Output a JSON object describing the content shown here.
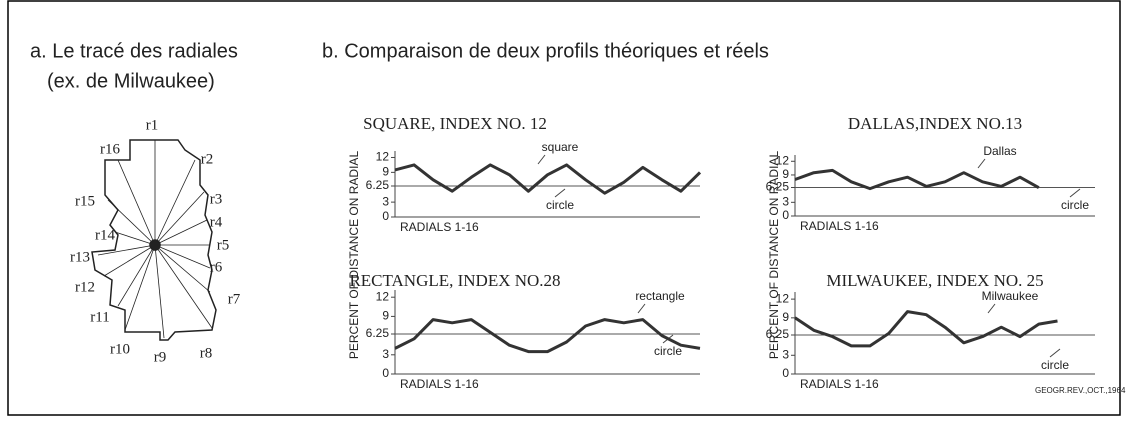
{
  "panel_a": {
    "title": [
      "a. Le tracé des radiales",
      "(ex. de Milwaukee)"
    ],
    "radial_labels": [
      "r1",
      "r2",
      "r3",
      "r4",
      "r5",
      "r6",
      "r7",
      "r8",
      "r9",
      "r10",
      "r11",
      "r12",
      "r13",
      "r14",
      "r15",
      "r16"
    ]
  },
  "panel_b": {
    "title": "b. Comparaison de deux profils théoriques et réels",
    "y_label": "PERCENT OF DISTANCE ON RADIAL",
    "source": "GEOGR.REV.,OCT.,1964"
  },
  "chart_data": [
    {
      "type": "line",
      "title": "SQUARE, INDEX NO. 12",
      "x_label": "RADIALS 1-16",
      "ylim": [
        0,
        12.5
      ],
      "yticks": [
        0,
        3,
        6.25,
        9,
        12
      ],
      "series": [
        {
          "name": "square",
          "color": "#333333",
          "values": [
            9.5,
            10.5,
            7.5,
            5.2,
            8,
            10.5,
            8.5,
            5.2,
            8.5,
            10.5,
            7.5,
            4.8,
            7,
            10,
            7.5,
            5.2,
            9
          ]
        }
      ],
      "reference": {
        "name": "circle",
        "value": 6.25
      }
    },
    {
      "type": "line",
      "title": "DALLAS,INDEX NO.13",
      "x_label": "RADIALS 1-16",
      "ylim": [
        0,
        12.5
      ],
      "yticks": [
        0,
        3,
        6.25,
        9,
        12
      ],
      "series": [
        {
          "name": "Dallas",
          "color": "#333333",
          "values": [
            8,
            9.5,
            10,
            7.5,
            6,
            7.5,
            8.5,
            6.5,
            7.5,
            9.5,
            7.5,
            6.5,
            8.5,
            6.2,
            null,
            null,
            null
          ]
        }
      ],
      "reference": {
        "name": "circle",
        "value": 6.25
      }
    },
    {
      "type": "line",
      "title": "RECTANGLE, INDEX NO.28",
      "x_label": "RADIALS 1-16",
      "ylim": [
        0,
        12.5
      ],
      "yticks": [
        0,
        3,
        6.25,
        9,
        12
      ],
      "series": [
        {
          "name": "rectangle",
          "color": "#333333",
          "values": [
            4,
            5.5,
            8.5,
            8,
            8.5,
            6.5,
            4.5,
            3.5,
            3.5,
            5,
            7.5,
            8.5,
            8,
            8.5,
            6,
            4.5,
            4
          ]
        }
      ],
      "reference": {
        "name": "circle",
        "value": 6.25
      }
    },
    {
      "type": "line",
      "title": "MILWAUKEE, INDEX NO. 25",
      "x_label": "RADIALS 1-16",
      "ylim": [
        0,
        12.5
      ],
      "yticks": [
        0,
        3,
        6.25,
        9,
        12
      ],
      "series": [
        {
          "name": "Milwaukee",
          "color": "#333333",
          "values": [
            9,
            7,
            6,
            4.5,
            4.5,
            6.5,
            10,
            9.5,
            7.5,
            5,
            6,
            7.5,
            6,
            8,
            8.5,
            null,
            null
          ]
        }
      ],
      "reference": {
        "name": "circle",
        "value": 6.25
      }
    }
  ]
}
